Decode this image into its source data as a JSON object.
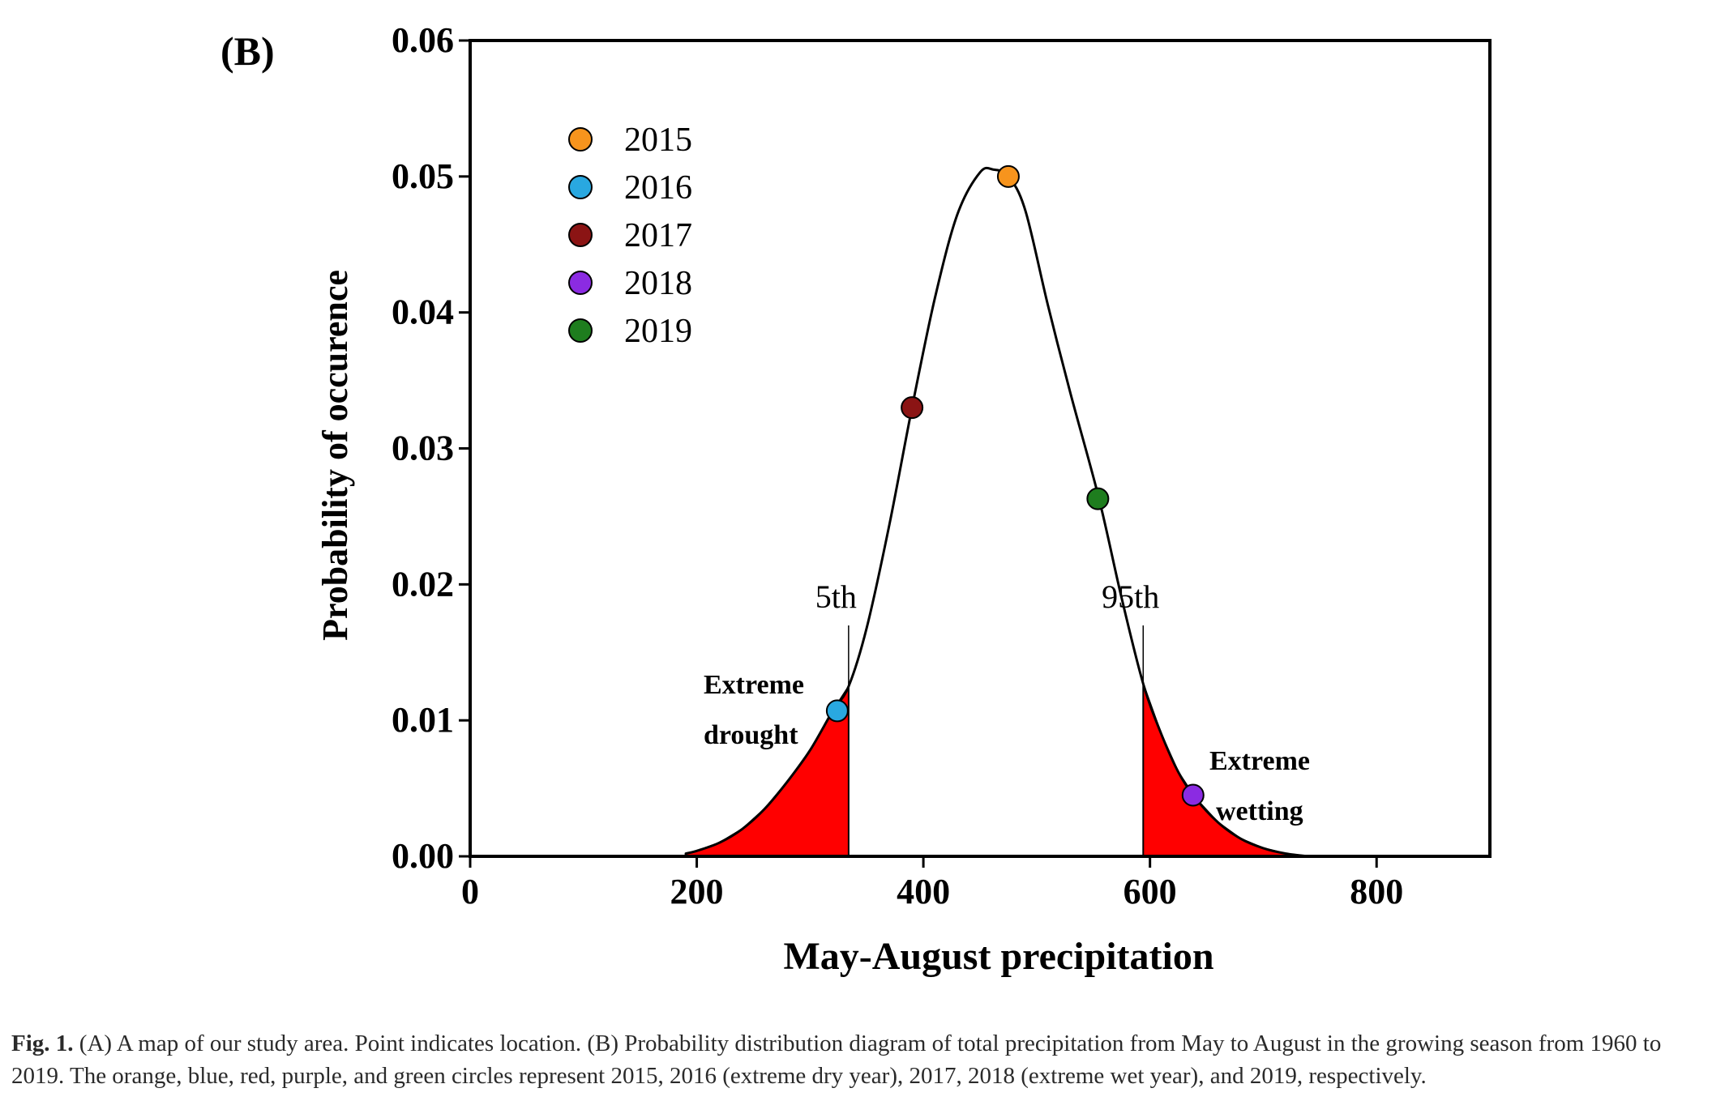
{
  "panel_label": "(B)",
  "chart_data": {
    "type": "line",
    "title": "",
    "xlabel": "May-August precipitation",
    "ylabel": "Probability of occurence",
    "xlim": [
      0,
      900
    ],
    "ylim": [
      0,
      0.06
    ],
    "x_ticks": [
      0,
      200,
      400,
      600,
      800
    ],
    "x_tick_labels": [
      "0",
      "200",
      "400",
      "600",
      "800"
    ],
    "y_ticks": [
      0,
      0.01,
      0.02,
      0.03,
      0.04,
      0.05,
      0.06
    ],
    "y_tick_labels": [
      "0.00",
      "0.01",
      "0.02",
      "0.03",
      "0.04",
      "0.05",
      "0.06"
    ],
    "grid": false,
    "legend_position": "top-left",
    "curve": {
      "x": [
        190,
        200,
        220,
        240,
        260,
        280,
        300,
        320,
        334,
        350,
        370,
        390,
        410,
        430,
        450,
        462,
        475,
        490,
        510,
        530,
        555,
        575,
        594,
        610,
        625,
        640,
        660,
        680,
        700,
        720,
        740
      ],
      "y": [
        0.0002,
        0.0004,
        0.001,
        0.002,
        0.0035,
        0.0055,
        0.0078,
        0.0107,
        0.0125,
        0.0168,
        0.0244,
        0.033,
        0.041,
        0.0472,
        0.0503,
        0.0505,
        0.05,
        0.0475,
        0.0405,
        0.034,
        0.0263,
        0.019,
        0.0127,
        0.009,
        0.0062,
        0.0043,
        0.0025,
        0.0013,
        0.0006,
        0.0002,
        0.0
      ],
      "color": "#000000"
    },
    "shaded_regions": [
      {
        "from": 190,
        "to": 334,
        "color": "#ff0000"
      },
      {
        "from": 594,
        "to": 740,
        "color": "#ff0000"
      }
    ],
    "percentile_lines": [
      {
        "x": 334,
        "label": "5th"
      },
      {
        "x": 594,
        "label": "95th"
      }
    ],
    "series": [
      {
        "name": "2015",
        "x": 475,
        "y": 0.05,
        "color": "#f7941d"
      },
      {
        "name": "2016",
        "x": 324,
        "y": 0.0107,
        "color": "#29a8e0"
      },
      {
        "name": "2017",
        "x": 390,
        "y": 0.033,
        "color": "#8b1414"
      },
      {
        "name": "2018",
        "x": 638,
        "y": 0.0045,
        "color": "#8b2be2"
      },
      {
        "name": "2019",
        "x": 554,
        "y": 0.0263,
        "color": "#1e7d1e"
      }
    ],
    "annotations": [
      {
        "lines": [
          "Extreme",
          "drought"
        ]
      },
      {
        "lines": [
          "Extreme",
          "wetting"
        ]
      }
    ]
  },
  "caption": {
    "label": "Fig. 1.",
    "text": " (A) A map of our study area. Point indicates location. (B) Probability distribution diagram of total precipitation from May to August in the growing season from 1960 to 2019. The orange, blue, red, purple, and green circles represent 2015, 2016 (extreme dry year), 2017, 2018 (extreme wet year), and 2019, respectively."
  }
}
